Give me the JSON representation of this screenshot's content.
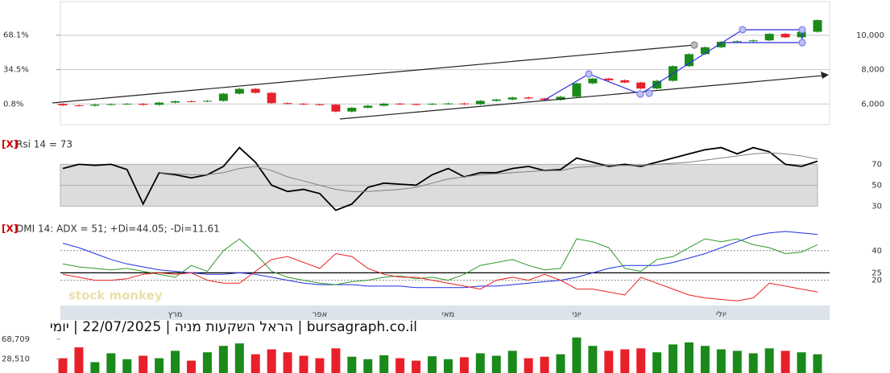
{
  "title": "bursagraph.co.il | הראל השקעות מניה | 22/07/2025 | יומי",
  "close_label": "[X]",
  "watermark": "stock monkey",
  "chart_data": [
    {
      "type": "candlestick",
      "categories": [
        null,
        null,
        null,
        null,
        null,
        null,
        null,
        "מרץ",
        null,
        null,
        null,
        null,
        null,
        null,
        null,
        null,
        "אפר",
        null,
        null,
        null,
        null,
        null,
        null,
        null,
        "מאי",
        null,
        null,
        null,
        null,
        null,
        null,
        null,
        "יוני",
        null,
        null,
        null,
        null,
        null,
        null,
        null,
        null,
        "יולי",
        null,
        null,
        null,
        null,
        null,
        null
      ],
      "open": [
        6000,
        5920,
        5900,
        5960,
        5990,
        6010,
        5950,
        6080,
        6160,
        6150,
        6180,
        6600,
        6880,
        6650,
        6050,
        6010,
        5980,
        5960,
        5560,
        5780,
        5900,
        6020,
        5990,
        5980,
        6010,
        6030,
        5990,
        6180,
        6260,
        6380,
        6320,
        6240,
        6420,
        7200,
        7480,
        7380,
        7250,
        6900,
        7350,
        8200,
        8900,
        9300,
        9620,
        9650,
        9700,
        10080,
        9880,
        10200
      ],
      "high": [
        6050,
        5970,
        6010,
        6040,
        6060,
        6060,
        6130,
        6210,
        6210,
        6230,
        6650,
        6930,
        6930,
        6700,
        6100,
        6060,
        6030,
        6010,
        5830,
        5950,
        6070,
        6070,
        6040,
        6060,
        6080,
        6080,
        6230,
        6310,
        6430,
        6430,
        6370,
        6470,
        7250,
        7530,
        7530,
        7430,
        7300,
        7400,
        8250,
        8950,
        9350,
        9670,
        9700,
        9750,
        10130,
        10130,
        10250,
        10930
      ],
      "low": [
        5870,
        5850,
        5850,
        5910,
        5940,
        5900,
        5900,
        6030,
        6100,
        6100,
        6130,
        6550,
        6600,
        6000,
        5960,
        5930,
        5910,
        5510,
        5510,
        5730,
        5850,
        5940,
        5930,
        5930,
        5960,
        5940,
        5940,
        6130,
        6210,
        6270,
        6190,
        6190,
        6370,
        7150,
        7330,
        7200,
        6850,
        6850,
        7300,
        8150,
        8850,
        9250,
        9570,
        9600,
        9650,
        9830,
        9830,
        10150
      ],
      "close": [
        5920,
        5900,
        5960,
        5990,
        6010,
        5950,
        6080,
        6160,
        6150,
        6180,
        6600,
        6880,
        6650,
        6050,
        6010,
        5980,
        5960,
        5560,
        5780,
        5900,
        6020,
        5990,
        5980,
        6010,
        6030,
        5990,
        6180,
        6260,
        6380,
        6320,
        6240,
        6420,
        7200,
        7480,
        7380,
        7250,
        6900,
        7350,
        8200,
        8900,
        9300,
        9620,
        9650,
        9700,
        10080,
        9880,
        10200,
        10880
      ],
      "up_color": "#1a8a1a",
      "down_color": "#e8202a",
      "ylim": [
        4800,
        12050
      ],
      "yticks": [
        {
          "value": 6000,
          "label": "6,000"
        },
        {
          "value": 8000,
          "label": "8,000"
        },
        {
          "value": 10000,
          "label": "10,000"
        }
      ],
      "y2lim": [
        -19.35,
        102.45
      ],
      "y2ticks": [
        {
          "value": 0.8,
          "label": "0.8%"
        },
        {
          "value": 34.5,
          "label": "34.5%"
        },
        {
          "value": 68.1,
          "label": "68.1%"
        }
      ],
      "grid": true
    },
    {
      "type": "line",
      "title": "Rsi 14 = 73",
      "series": [
        {
          "color": "#000000",
          "values": [
            66,
            70,
            69,
            70,
            65,
            32,
            62,
            60,
            57,
            60,
            68,
            86,
            72,
            50,
            44,
            46,
            42,
            26,
            32,
            48,
            52,
            51,
            50,
            60,
            66,
            58,
            62,
            62,
            66,
            68,
            64,
            65,
            76,
            72,
            68,
            70,
            68,
            72,
            76,
            80,
            84,
            86,
            80,
            86,
            82,
            70,
            68,
            73
          ]
        },
        {
          "color": "#808080",
          "values": [
            null,
            null,
            null,
            null,
            null,
            null,
            62,
            61,
            60,
            60,
            62,
            66,
            68,
            64,
            58,
            54,
            50,
            46,
            44,
            44,
            45,
            46,
            48,
            52,
            56,
            58,
            60,
            61,
            62,
            63,
            64,
            64,
            67,
            68,
            69,
            69,
            69,
            70,
            71,
            72,
            74,
            76,
            78,
            80,
            81,
            80,
            78,
            75
          ]
        }
      ],
      "ylim": [
        18,
        98
      ],
      "yticks": [
        30,
        50,
        70
      ],
      "band": [
        30,
        70
      ]
    },
    {
      "type": "line",
      "title": "DMI 14: ADX = 51; +Di=44.05; -Di=11.61",
      "series": [
        {
          "color": "#1f2fe0",
          "values": [
            45,
            42,
            38,
            34,
            31,
            29,
            27,
            26,
            25,
            24,
            24,
            25,
            24,
            22,
            20,
            18,
            17,
            17,
            17,
            16,
            16,
            16,
            15,
            15,
            15,
            15,
            16,
            16,
            17,
            18,
            19,
            20,
            22,
            25,
            28,
            30,
            30,
            30,
            32,
            35,
            38,
            42,
            46,
            50,
            52,
            53,
            52,
            51
          ]
        },
        {
          "color": "#2a9a2a",
          "values": [
            31,
            29,
            28,
            27,
            28,
            26,
            24,
            22,
            30,
            26,
            40,
            48,
            38,
            26,
            22,
            20,
            18,
            17,
            19,
            20,
            22,
            23,
            21,
            22,
            20,
            24,
            30,
            32,
            34,
            30,
            27,
            28,
            48,
            46,
            42,
            28,
            26,
            34,
            36,
            42,
            48,
            46,
            48,
            44,
            42,
            38,
            39,
            44
          ]
        },
        {
          "color": "#e82020",
          "values": [
            24,
            22,
            20,
            20,
            21,
            24,
            25,
            24,
            25,
            20,
            18,
            18,
            26,
            34,
            36,
            32,
            28,
            38,
            36,
            28,
            24,
            22,
            22,
            20,
            18,
            16,
            14,
            20,
            22,
            20,
            24,
            20,
            14,
            14,
            12,
            10,
            22,
            18,
            14,
            10,
            8,
            7,
            6,
            8,
            18,
            16,
            14,
            12
          ]
        }
      ],
      "ylim": [
        4,
        60
      ],
      "yticks": [
        20,
        25,
        40
      ],
      "threshold": 25
    },
    {
      "type": "bar",
      "values": [
        30000,
        52000,
        22000,
        40000,
        28000,
        35000,
        30000,
        45000,
        25000,
        42000,
        55000,
        60000,
        38000,
        48000,
        42000,
        35000,
        30000,
        50000,
        33000,
        28000,
        36000,
        30000,
        25000,
        34000,
        28000,
        32000,
        40000,
        35000,
        45000,
        30000,
        33000,
        38000,
        72000,
        55000,
        45000,
        48000,
        50000,
        42000,
        58000,
        62000,
        55000,
        48000,
        45000,
        40000,
        50000,
        45000,
        42000,
        38000
      ],
      "ylim": [
        0,
        75000
      ],
      "yticks": [
        {
          "value": 28510,
          "label": "28,510"
        },
        {
          "value": 68709,
          "label": "68,709"
        }
      ]
    }
  ]
}
